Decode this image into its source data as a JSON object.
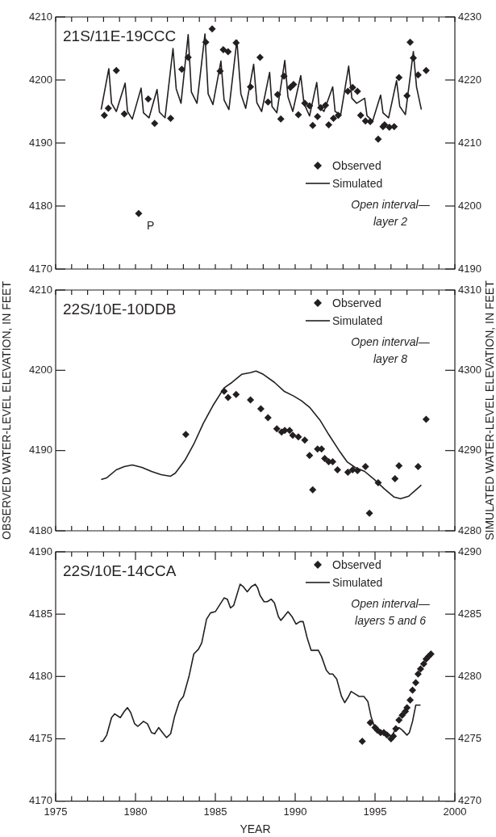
{
  "chart_data": [
    {
      "type": "scatter",
      "title": "21S/11E-19CCC",
      "marker": "diamond",
      "grid": false,
      "legend": "right",
      "tick_labels": "y",
      "xlim": [
        1975,
        2000
      ],
      "ylim": [
        4170,
        4210
      ],
      "yticks": [
        4170,
        4180,
        4190,
        4200,
        4210
      ],
      "y2lim": [
        4190,
        4230
      ],
      "y2ticks": [
        4190,
        4200,
        4210,
        4220,
        4230
      ],
      "xticks": [
        {
          "value": 1975,
          "label": null
        },
        {
          "value": 1976,
          "label": null
        },
        {
          "value": 1977,
          "label": null
        },
        {
          "value": 1978,
          "label": null
        },
        {
          "value": 1979,
          "label": null
        },
        {
          "value": 1980,
          "label": null
        },
        {
          "value": 1981,
          "label": null
        },
        {
          "value": 1982,
          "label": null
        },
        {
          "value": 1983,
          "label": null
        },
        {
          "value": 1984,
          "label": null
        },
        {
          "value": 1985,
          "label": null
        },
        {
          "value": 1986,
          "label": null
        },
        {
          "value": 1987,
          "label": null
        },
        {
          "value": 1988,
          "label": null
        },
        {
          "value": 1989,
          "label": null
        },
        {
          "value": 1990,
          "label": null
        },
        {
          "value": 1991,
          "label": null
        },
        {
          "value": 1992,
          "label": null
        },
        {
          "value": 1993,
          "label": null
        },
        {
          "value": 1994,
          "label": null
        },
        {
          "value": 1995,
          "label": null
        },
        {
          "value": 1996,
          "label": null
        },
        {
          "value": 1997,
          "label": null
        },
        {
          "value": 1998,
          "label": null
        },
        {
          "value": 1999,
          "label": null
        },
        {
          "value": 2000,
          "label": null
        }
      ],
      "annotations": [
        "Open interval—\nlayer 2",
        {
          "text": "P",
          "x": 1980.2,
          "y": 4178.8
        }
      ],
      "series": [
        {
          "name": "Observed",
          "type": "scatter",
          "color": "#231f20",
          "x": [
            1978.05,
            1978.3,
            1978.8,
            1979.3,
            1980.2,
            1980.8,
            1981.2,
            1982.2,
            1982.9,
            1983.3,
            1984.4,
            1984.8,
            1985.3,
            1985.5,
            1985.8,
            1986.3,
            1987.2,
            1987.8,
            1988.3,
            1988.9,
            1989.1,
            1989.3,
            1989.7,
            1989.9,
            1990.2,
            1990.6,
            1990.9,
            1991.1,
            1991.4,
            1991.6,
            1991.9,
            1992.1,
            1992.4,
            1992.7,
            1993.3,
            1993.6,
            1993.9,
            1994.1,
            1994.4,
            1994.7,
            1995.2,
            1995.5,
            1995.6,
            1995.9,
            1996.2,
            1996.5,
            1997.0,
            1997.2,
            1997.4,
            1997.7,
            1998.2
          ],
          "values": [
            4194.4,
            4195.5,
            4201.5,
            4194.6,
            4178.8,
            4197.0,
            4193.1,
            4193.9,
            4201.7,
            4203.6,
            4206.0,
            4208.1,
            4201.4,
            4204.8,
            4204.5,
            4205.9,
            4198.9,
            4203.6,
            4196.5,
            4197.7,
            4193.8,
            4200.6,
            4198.8,
            4199.3,
            4194.5,
            4196.3,
            4195.9,
            4192.8,
            4194.2,
            4195.6,
            4196.0,
            4192.9,
            4193.9,
            4194.4,
            4198.2,
            4198.8,
            4198.2,
            4194.4,
            4193.5,
            4193.4,
            4190.6,
            4192.6,
            4192.9,
            4192.5,
            4192.6,
            4200.4,
            4197.5,
            4206.0,
            4203.5,
            4200.8,
            4201.5
          ]
        },
        {
          "name": "Simulated",
          "type": "line",
          "axis": "y2",
          "marker": "none",
          "color": "#231f20",
          "x": [
            1977.85,
            1978.33,
            1978.5,
            1978.8,
            1979.35,
            1979.5,
            1979.8,
            1980.35,
            1980.5,
            1980.85,
            1981.35,
            1981.5,
            1981.85,
            1982.35,
            1982.55,
            1982.85,
            1983.3,
            1983.5,
            1983.85,
            1984.35,
            1984.55,
            1984.85,
            1985.35,
            1985.55,
            1985.85,
            1986.35,
            1986.6,
            1986.9,
            1987.4,
            1987.6,
            1987.9,
            1988.4,
            1988.55,
            1988.85,
            1989.35,
            1989.55,
            1989.85,
            1990.35,
            1990.55,
            1990.9,
            1991.35,
            1991.5,
            1991.8,
            1992.35,
            1992.5,
            1992.85,
            1993.35,
            1993.55,
            1993.85,
            1994.35,
            1994.5,
            1994.85,
            1995.35,
            1995.5,
            1995.85,
            1996.35,
            1996.55,
            1996.9,
            1997.4,
            1997.6,
            1997.9
          ],
          "values": [
            4215.3,
            4221.8,
            4216.3,
            4215.0,
            4219.5,
            4215.0,
            4213.8,
            4218.7,
            4214.8,
            4214.0,
            4218.5,
            4214.9,
            4214.0,
            4225.0,
            4218.6,
            4216.3,
            4227.2,
            4218.1,
            4216.3,
            4227.3,
            4217.8,
            4216.1,
            4223.0,
            4216.8,
            4215.3,
            4226.3,
            4217.8,
            4215.5,
            4222.5,
            4216.4,
            4215.0,
            4221.2,
            4215.8,
            4214.8,
            4223.1,
            4217.3,
            4215.0,
            4220.7,
            4216.3,
            4214.3,
            4219.6,
            4215.8,
            4215.0,
            4218.9,
            4215.0,
            4214.5,
            4222.2,
            4217.1,
            4216.3,
            4217.1,
            4214.3,
            4213.5,
            4217.6,
            4214.8,
            4214.0,
            4219.9,
            4215.8,
            4214.5,
            4224.5,
            4218.9,
            4215.3
          ]
        }
      ]
    },
    {
      "type": "scatter",
      "title": "22S/10E-10DDB",
      "marker": "diamond",
      "grid": false,
      "legend": "top right",
      "tick_labels": "y",
      "ylabel": "OBSERVED WATER-LEVEL ELEVATION, IN FEET",
      "y2label": "SIMULATED WATER-LEVEL ELEVATION, IN FEET",
      "xlim": [
        1975,
        2000
      ],
      "ylim": [
        4180,
        4210
      ],
      "yticks": [
        4180,
        4190,
        4200,
        4210
      ],
      "y2lim": [
        4280,
        4310
      ],
      "y2ticks": [
        4280,
        4290,
        4300,
        4310
      ],
      "xticks": [
        {
          "value": 1975,
          "label": null
        },
        {
          "value": 1976,
          "label": null
        },
        {
          "value": 1977,
          "label": null
        },
        {
          "value": 1978,
          "label": null
        },
        {
          "value": 1979,
          "label": null
        },
        {
          "value": 1980,
          "label": null
        },
        {
          "value": 1981,
          "label": null
        },
        {
          "value": 1982,
          "label": null
        },
        {
          "value": 1983,
          "label": null
        },
        {
          "value": 1984,
          "label": null
        },
        {
          "value": 1985,
          "label": null
        },
        {
          "value": 1986,
          "label": null
        },
        {
          "value": 1987,
          "label": null
        },
        {
          "value": 1988,
          "label": null
        },
        {
          "value": 1989,
          "label": null
        },
        {
          "value": 1990,
          "label": null
        },
        {
          "value": 1991,
          "label": null
        },
        {
          "value": 1992,
          "label": null
        },
        {
          "value": 1993,
          "label": null
        },
        {
          "value": 1994,
          "label": null
        },
        {
          "value": 1995,
          "label": null
        },
        {
          "value": 1996,
          "label": null
        },
        {
          "value": 1997,
          "label": null
        },
        {
          "value": 1998,
          "label": null
        },
        {
          "value": 1999,
          "label": null
        },
        {
          "value": 2000,
          "label": null
        }
      ],
      "annotations": [
        "Open interval—\nlayer 8"
      ],
      "series": [
        {
          "name": "Observed",
          "type": "scatter",
          "color": "#231f20",
          "x": [
            1983.15,
            1985.55,
            1985.8,
            1986.3,
            1987.2,
            1987.85,
            1988.3,
            1988.85,
            1989.15,
            1989.35,
            1989.65,
            1989.85,
            1990.2,
            1990.6,
            1990.9,
            1991.1,
            1991.4,
            1991.65,
            1991.85,
            1992.1,
            1992.35,
            1992.65,
            1993.3,
            1993.6,
            1993.9,
            1994.4,
            1994.65,
            1995.2,
            1996.25,
            1996.5,
            1997.7,
            1998.2
          ],
          "values": [
            4192.0,
            4197.4,
            4196.6,
            4197.0,
            4196.3,
            4195.2,
            4194.1,
            4192.7,
            4192.3,
            4192.5,
            4192.5,
            4191.9,
            4191.7,
            4191.3,
            4189.4,
            4185.1,
            4190.2,
            4190.2,
            4189.0,
            4188.6,
            4188.6,
            4187.6,
            4187.3,
            4187.6,
            4187.5,
            4188.0,
            4182.2,
            4186.0,
            4186.5,
            4188.1,
            4188.0,
            4193.9
          ]
        },
        {
          "name": "Simulated",
          "type": "line",
          "axis": "y2",
          "marker": "none",
          "color": "#231f20",
          "x": [
            1977.85,
            1978.2,
            1978.8,
            1979.3,
            1979.8,
            1980.4,
            1981.0,
            1981.6,
            1982.2,
            1982.5,
            1983.1,
            1983.65,
            1984.25,
            1984.85,
            1985.55,
            1986.05,
            1986.65,
            1987.2,
            1987.55,
            1988.0,
            1988.7,
            1989.3,
            1989.9,
            1990.4,
            1990.9,
            1991.55,
            1992.1,
            1992.75,
            1993.25,
            1993.75,
            1994.35,
            1994.95,
            1995.6,
            1996.2,
            1996.6,
            1997.1,
            1997.5,
            1997.9
          ],
          "values": [
            4286.4,
            4286.6,
            4287.6,
            4288.0,
            4288.2,
            4287.9,
            4287.4,
            4287.0,
            4286.8,
            4287.2,
            4288.8,
            4290.8,
            4293.4,
            4295.6,
            4297.8,
            4298.5,
            4299.5,
            4299.7,
            4299.9,
            4299.5,
            4298.5,
            4297.4,
            4296.8,
            4296.2,
            4295.4,
            4293.8,
            4292.0,
            4290.0,
            4288.6,
            4287.9,
            4287.4,
            4286.4,
            4285.2,
            4284.2,
            4284.0,
            4284.3,
            4285.0,
            4285.7
          ]
        }
      ]
    },
    {
      "type": "scatter",
      "title": "22S/10E-14CCA",
      "marker": "diamond",
      "grid": false,
      "legend": "top right",
      "xlabel": "YEAR",
      "xlim": [
        1975,
        2000
      ],
      "ylim": [
        4170,
        4190
      ],
      "yticks": [
        4170,
        4175,
        4180,
        4185,
        4190
      ],
      "y2lim": [
        4270,
        4290
      ],
      "y2ticks": [
        4270,
        4275,
        4280,
        4285,
        4290
      ],
      "xticks": [
        1975,
        {
          "value": 1976,
          "label": null
        },
        {
          "value": 1977,
          "label": null
        },
        {
          "value": 1978,
          "label": null
        },
        {
          "value": 1979,
          "label": null
        },
        1980,
        {
          "value": 1981,
          "label": null
        },
        {
          "value": 1982,
          "label": null
        },
        {
          "value": 1983,
          "label": null
        },
        {
          "value": 1984,
          "label": null
        },
        1985,
        {
          "value": 1986,
          "label": null
        },
        {
          "value": 1987,
          "label": null
        },
        {
          "value": 1988,
          "label": null
        },
        {
          "value": 1989,
          "label": null
        },
        1990,
        {
          "value": 1991,
          "label": null
        },
        {
          "value": 1992,
          "label": null
        },
        {
          "value": 1993,
          "label": null
        },
        {
          "value": 1994,
          "label": null
        },
        1995,
        {
          "value": 1996,
          "label": null
        },
        {
          "value": 1997,
          "label": null
        },
        {
          "value": 1998,
          "label": null
        },
        {
          "value": 1999,
          "label": null
        },
        2000
      ],
      "annotations": [
        "Open interval—\nlayers 5 and 6"
      ],
      "series": [
        {
          "name": "Observed",
          "type": "scatter",
          "color": "#231f20",
          "x": [
            1994.2,
            1994.7,
            1995.0,
            1995.15,
            1995.35,
            1995.55,
            1995.75,
            1996.0,
            1996.15,
            1996.3,
            1996.5,
            1996.7,
            1996.9,
            1997.0,
            1997.2,
            1997.35,
            1997.55,
            1997.7,
            1997.85,
            1998.05,
            1998.2,
            1998.35,
            1998.5
          ],
          "values": [
            4174.8,
            4176.3,
            4175.9,
            4175.7,
            4175.5,
            4175.5,
            4175.3,
            4175.0,
            4175.2,
            4175.8,
            4176.5,
            4176.9,
            4177.2,
            4177.5,
            4178.1,
            4178.9,
            4179.5,
            4180.2,
            4180.6,
            4181.0,
            4181.4,
            4181.6,
            4181.8
          ]
        },
        {
          "name": "Simulated",
          "type": "line",
          "axis": "y2",
          "marker": "none",
          "color": "#231f20",
          "x": [
            1977.8,
            1977.95,
            1978.2,
            1978.5,
            1978.7,
            1979.05,
            1979.3,
            1979.5,
            1979.7,
            1979.95,
            1980.15,
            1980.5,
            1980.75,
            1981.0,
            1981.2,
            1981.45,
            1981.75,
            1981.95,
            1982.2,
            1982.45,
            1982.75,
            1983.0,
            1983.35,
            1983.65,
            1983.95,
            1984.15,
            1984.45,
            1984.7,
            1985.0,
            1985.25,
            1985.55,
            1985.75,
            1985.95,
            1986.15,
            1986.55,
            1986.75,
            1987.0,
            1987.25,
            1987.5,
            1987.65,
            1987.8,
            1988.05,
            1988.25,
            1988.5,
            1988.7,
            1988.95,
            1989.1,
            1989.3,
            1989.55,
            1989.8,
            1990.05,
            1990.3,
            1990.5,
            1990.75,
            1991.0,
            1991.2,
            1991.45,
            1991.65,
            1991.95,
            1992.15,
            1992.35,
            1992.6,
            1992.9,
            1993.1,
            1993.3,
            1993.5,
            1993.75,
            1994.0,
            1994.3,
            1994.55,
            1994.75,
            1995.0,
            1995.35,
            1995.75,
            1996.05,
            1996.25,
            1996.5,
            1996.7,
            1997.0,
            1997.15,
            1997.35,
            1997.55,
            1997.85
          ],
          "values": [
            4274.8,
            4274.8,
            4275.3,
            4276.7,
            4277.0,
            4276.7,
            4277.2,
            4277.5,
            4277.1,
            4276.2,
            4276.0,
            4276.4,
            4276.2,
            4275.5,
            4275.4,
            4275.9,
            4275.4,
            4275.1,
            4275.4,
            4276.8,
            4278.0,
            4278.4,
            4280.0,
            4281.8,
            4282.2,
            4282.7,
            4284.6,
            4285.1,
            4285.2,
            4285.7,
            4286.3,
            4286.2,
            4285.5,
            4285.7,
            4287.4,
            4287.2,
            4286.8,
            4287.2,
            4287.4,
            4287.1,
            4286.5,
            4286.0,
            4286.0,
            4286.2,
            4285.9,
            4284.8,
            4284.5,
            4284.8,
            4285.2,
            4284.8,
            4284.2,
            4284.4,
            4284.4,
            4283.1,
            4282.1,
            4282.1,
            4282.1,
            4281.6,
            4280.5,
            4280.2,
            4280.2,
            4279.8,
            4278.4,
            4277.9,
            4278.3,
            4278.8,
            4278.6,
            4278.4,
            4278.4,
            4278.0,
            4276.8,
            4275.8,
            4275.5,
            4275.4,
            4275.2,
            4275.7,
            4275.9,
            4275.7,
            4275.3,
            4275.5,
            4276.4,
            4277.7,
            4277.7
          ]
        }
      ]
    }
  ]
}
